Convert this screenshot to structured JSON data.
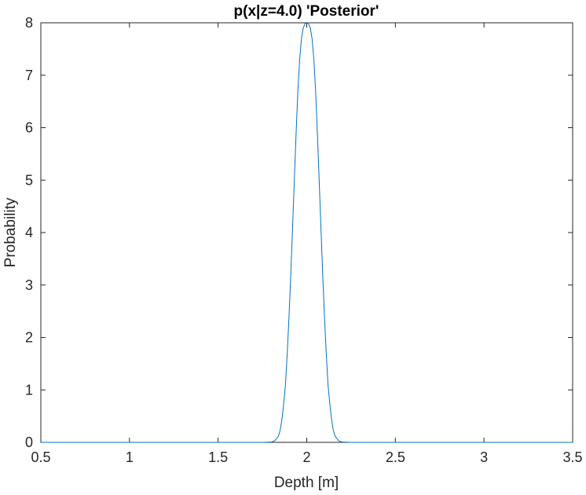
{
  "chart_data": {
    "type": "line",
    "title": "p(x|z=4.0) 'Posterior'",
    "xlabel": "Depth [m]",
    "ylabel": "Probability",
    "xlim": [
      0.5,
      3.5
    ],
    "ylim": [
      0,
      8
    ],
    "xticks": [
      "0.5",
      "1",
      "1.5",
      "2",
      "2.5",
      "3",
      "3.5"
    ],
    "yticks": [
      "0",
      "1",
      "2",
      "3",
      "4",
      "5",
      "6",
      "7",
      "8"
    ],
    "grid": false,
    "legend": "none",
    "colors": {
      "line": "#0072BD",
      "axes": "#262626"
    },
    "series": [
      {
        "x": [
          0.5,
          1.0,
          1.5,
          1.7,
          1.75,
          1.8,
          1.82,
          1.84,
          1.85,
          1.86,
          1.87,
          1.88,
          1.89,
          1.9,
          1.91,
          1.92,
          1.93,
          1.94,
          1.95,
          1.96,
          1.97,
          1.98,
          1.99,
          2.0,
          2.01,
          2.02,
          2.03,
          2.04,
          2.05,
          2.06,
          2.07,
          2.08,
          2.09,
          2.1,
          2.11,
          2.12,
          2.13,
          2.14,
          2.15,
          2.16,
          2.18,
          2.2,
          2.25,
          2.3,
          2.5,
          3.0,
          3.5
        ],
        "y": [
          0,
          0,
          0,
          0.0,
          0.0,
          0.005,
          0.03,
          0.12,
          0.23,
          0.44,
          0.74,
          1.1,
          1.7,
          2.4,
          3.2,
          4.1,
          5.0,
          5.9,
          6.7,
          7.3,
          7.7,
          7.9,
          7.98,
          8.0,
          7.98,
          7.9,
          7.7,
          7.3,
          6.7,
          5.9,
          5.0,
          4.1,
          3.2,
          2.4,
          1.7,
          1.1,
          0.74,
          0.44,
          0.23,
          0.12,
          0.03,
          0.005,
          0.0,
          0.0,
          0,
          0,
          0
        ]
      }
    ]
  }
}
